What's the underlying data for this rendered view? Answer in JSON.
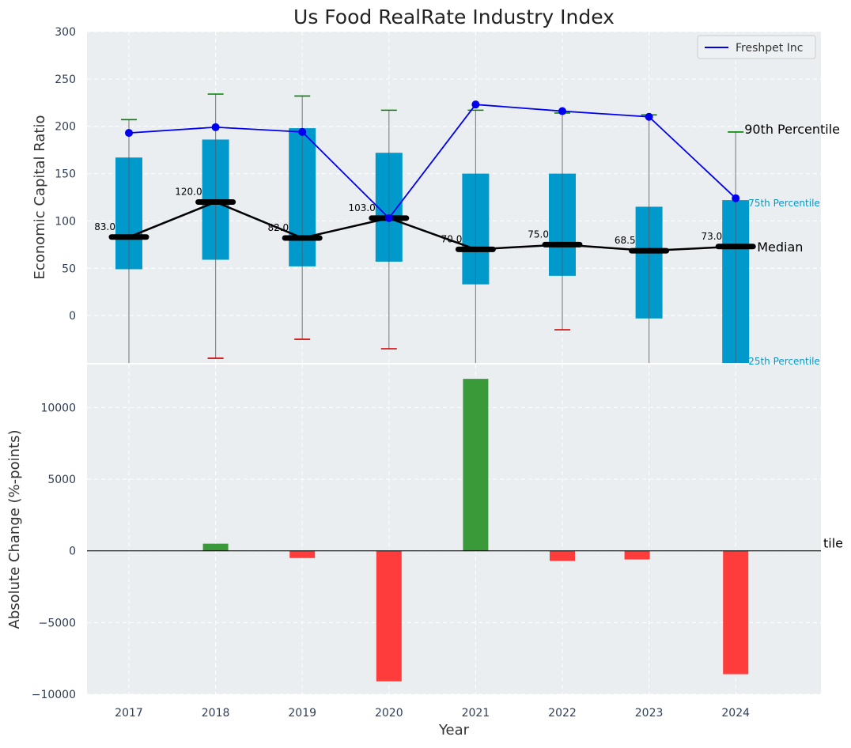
{
  "chart_data": [
    {
      "type": "box",
      "title": "Us Food RealRate Industry Index",
      "xlabel": "",
      "ylabel": "Economic Capital Ratio",
      "ylim": [
        -50,
        300
      ],
      "yticks": [
        0,
        50,
        100,
        150,
        200,
        250,
        300
      ],
      "grid": true,
      "legend_position": "top-right",
      "categories": [
        "2017",
        "2018",
        "2019",
        "2020",
        "2021",
        "2022",
        "2023",
        "2024"
      ],
      "boxes": {
        "q1": [
          49,
          59,
          52,
          57,
          33,
          42,
          -3,
          -50
        ],
        "q3": [
          167,
          186,
          198,
          172,
          150,
          150,
          115,
          122
        ],
        "p90": [
          207,
          234,
          232,
          217,
          217,
          214,
          212,
          194
        ],
        "p10": [
          null,
          -45,
          -25,
          -35,
          null,
          -15,
          null,
          null
        ],
        "median": [
          83.0,
          120.0,
          82.0,
          103.0,
          70.0,
          75.0,
          68.5,
          73.0
        ]
      },
      "median_labels": [
        "83.0",
        "120.0",
        "82.0",
        "103.0",
        "70.0",
        "75.0",
        "68.5",
        "73.0"
      ],
      "series": [
        {
          "name": "Freshpet Inc",
          "values": [
            193,
            199,
            194,
            103,
            223,
            216,
            210,
            124
          ]
        }
      ],
      "annotations": {
        "p90": "90th Percentile",
        "p75": "75th Percentile",
        "median": "Median",
        "p25": "25th Percentile"
      },
      "colors": {
        "box": "#0099cc",
        "line": "#0000ee",
        "median": "#000000",
        "upper_whisker": "#008000",
        "lower_whisker": "#dd0000",
        "background": "#eaeef0"
      }
    },
    {
      "type": "bar",
      "xlabel": "Year",
      "ylabel": "Absolute Change (%-points)",
      "ylim": [
        -10000,
        13000
      ],
      "yticks": [
        -10000,
        -5000,
        0,
        5000,
        10000
      ],
      "ytick_labels": [
        "−10000",
        "−5000",
        "0",
        "5000",
        "10000"
      ],
      "grid": true,
      "categories": [
        "2017",
        "2018",
        "2019",
        "2020",
        "2021",
        "2022",
        "2023",
        "2024"
      ],
      "values": [
        0,
        500,
        -500,
        -9100,
        12000,
        -700,
        -600,
        -8600
      ],
      "clipped_label": "tile",
      "colors": {
        "positive": "#3a9a3a",
        "negative": "#ff3c3c"
      }
    }
  ]
}
